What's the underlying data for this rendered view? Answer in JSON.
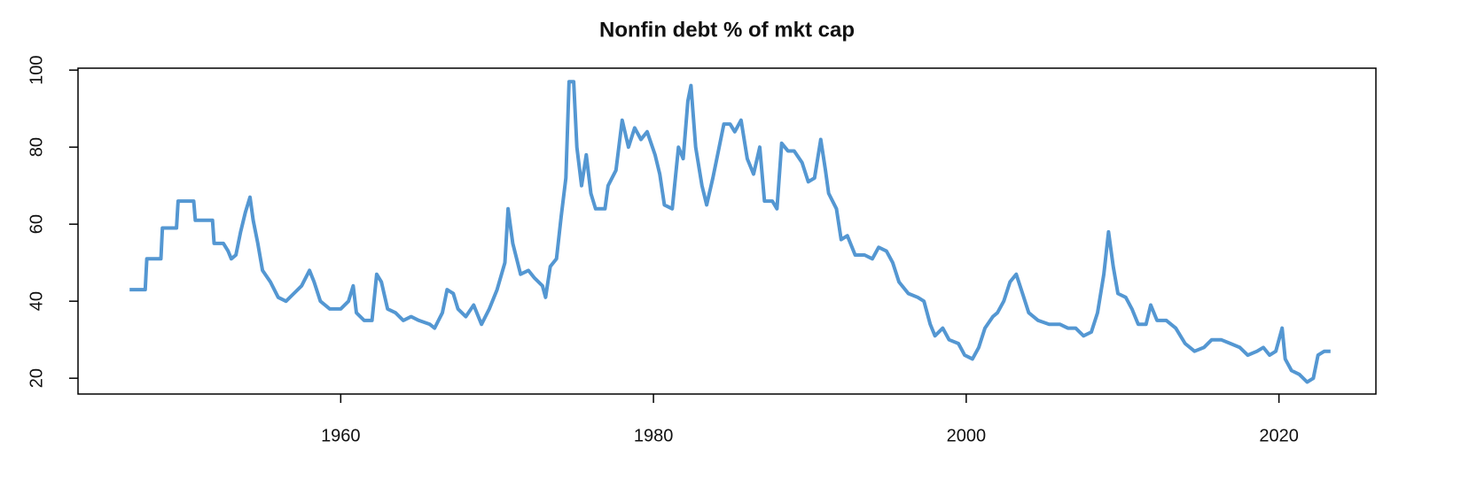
{
  "chart_data": {
    "type": "line",
    "title": "Nonfin debt % of mkt cap",
    "x": [
      1946.5,
      1947.5,
      1947.6,
      1948.5,
      1948.6,
      1949.5,
      1949.6,
      1950.6,
      1950.7,
      1951.8,
      1951.9,
      1952.5,
      1952.8,
      1953,
      1953.3,
      1953.6,
      1953.9,
      1954.2,
      1954.4,
      1954.7,
      1955,
      1955.5,
      1956,
      1956.5,
      1957,
      1957.5,
      1958,
      1958.3,
      1958.7,
      1959.3,
      1960,
      1960.5,
      1960.8,
      1961,
      1961.5,
      1962,
      1962.3,
      1962.6,
      1963,
      1963.5,
      1964,
      1964.5,
      1965,
      1965.7,
      1966,
      1966.5,
      1966.8,
      1967.2,
      1967.5,
      1968,
      1968.5,
      1969,
      1969.5,
      1970,
      1970.5,
      1970.7,
      1971,
      1971.5,
      1972,
      1972.4,
      1972.9,
      1973.1,
      1973.4,
      1973.8,
      1974.1,
      1974.4,
      1974.6,
      1974.9,
      1975.1,
      1975.4,
      1975.7,
      1976,
      1976.3,
      1976.9,
      1977.1,
      1977.6,
      1978,
      1978.4,
      1978.8,
      1979.2,
      1979.6,
      1980.1,
      1980.4,
      1980.7,
      1981.2,
      1981.6,
      1981.9,
      1982.2,
      1982.4,
      1982.7,
      1983.1,
      1983.4,
      1983.8,
      1984.2,
      1984.5,
      1984.9,
      1985.2,
      1985.6,
      1986,
      1986.4,
      1986.8,
      1987.1,
      1987.6,
      1987.9,
      1988.2,
      1988.6,
      1989,
      1989.5,
      1989.9,
      1990.3,
      1990.7,
      1991,
      1991.2,
      1991.7,
      1992,
      1992.4,
      1992.9,
      1993.5,
      1994,
      1994.4,
      1994.9,
      1995.3,
      1995.7,
      1996.3,
      1996.9,
      1997.3,
      1997.7,
      1998,
      1998.5,
      1998.9,
      1999.5,
      1999.9,
      2000.4,
      2000.8,
      2001.2,
      2001.7,
      2002,
      2002.4,
      2002.8,
      2003.2,
      2003.6,
      2004,
      2004.6,
      2005.3,
      2006,
      2006.5,
      2007,
      2007.5,
      2008,
      2008.4,
      2008.8,
      2009.1,
      2009.4,
      2009.7,
      2010.2,
      2010.6,
      2011,
      2011.5,
      2011.8,
      2012.2,
      2012.8,
      2013.4,
      2014,
      2014.6,
      2015.2,
      2015.7,
      2016.3,
      2016.9,
      2017.5,
      2018,
      2018.6,
      2019,
      2019.4,
      2019.8,
      2020.2,
      2020.4,
      2020.8,
      2021.3,
      2021.8,
      2022.2,
      2022.5,
      2022.9,
      2023.3
    ],
    "series": [
      {
        "color": "#5497d2",
        "values": [
          43,
          43,
          51,
          51,
          59,
          59,
          66,
          66,
          61,
          61,
          55,
          55,
          53,
          51,
          52,
          58,
          63,
          67,
          61,
          55,
          48,
          45,
          41,
          40,
          42,
          44,
          48,
          45,
          40,
          38,
          38,
          40,
          44,
          37,
          35,
          35,
          47,
          45,
          38,
          37,
          35,
          36,
          35,
          34,
          33,
          37,
          43,
          42,
          38,
          36,
          39,
          34,
          38,
          43,
          50,
          64,
          55,
          47,
          48,
          46,
          44,
          41,
          49,
          51,
          62,
          72,
          97,
          97,
          80,
          70,
          78,
          68,
          64,
          64,
          70,
          74,
          87,
          80,
          85,
          82,
          84,
          78,
          73,
          65,
          64,
          80,
          77,
          92,
          96,
          80,
          70,
          65,
          72,
          80,
          86,
          86,
          84,
          87,
          77,
          73,
          80,
          66,
          66,
          64,
          81,
          79,
          79,
          76,
          71,
          72,
          82,
          74,
          68,
          64,
          56,
          57,
          52,
          52,
          51,
          54,
          53,
          50,
          45,
          42,
          41,
          40,
          34,
          31,
          33,
          30,
          29,
          26,
          25,
          28,
          33,
          36,
          37,
          40,
          45,
          47,
          42,
          37,
          35,
          34,
          34,
          33,
          33,
          31,
          32,
          37,
          47,
          58,
          49,
          42,
          41,
          38,
          34,
          34,
          39,
          35,
          35,
          33,
          29,
          27,
          28,
          30,
          30,
          29,
          28,
          26,
          27,
          28,
          26,
          27,
          33,
          25,
          22,
          21,
          19,
          20,
          26,
          27,
          27
        ]
      }
    ],
    "xlim": [
      1943.2,
      2026.2
    ],
    "ylim": [
      15.9,
      100.5
    ],
    "xticks": [
      1960,
      1980,
      2000,
      2020
    ],
    "yticks": [
      20,
      40,
      60,
      80,
      100
    ]
  }
}
